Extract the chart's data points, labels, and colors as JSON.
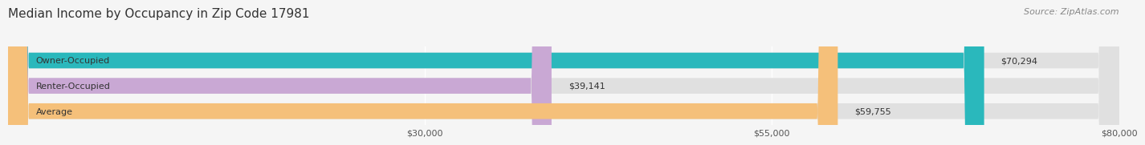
{
  "title": "Median Income by Occupancy in Zip Code 17981",
  "source": "Source: ZipAtlas.com",
  "categories": [
    "Owner-Occupied",
    "Renter-Occupied",
    "Average"
  ],
  "values": [
    70294,
    39141,
    59755
  ],
  "bar_colors": [
    "#2ab8bc",
    "#c9a8d4",
    "#f5c07a"
  ],
  "bar_labels": [
    "$70,294",
    "$39,141",
    "$59,755"
  ],
  "xlim": [
    0,
    80000
  ],
  "xticks": [
    30000,
    55000,
    80000
  ],
  "xtick_labels": [
    "$30,000",
    "$55,000",
    "$80,000"
  ],
  "background_color": "#f5f5f5",
  "bar_bg_color": "#e0e0e0",
  "title_fontsize": 11,
  "source_fontsize": 8,
  "label_fontsize": 8,
  "tick_fontsize": 8
}
